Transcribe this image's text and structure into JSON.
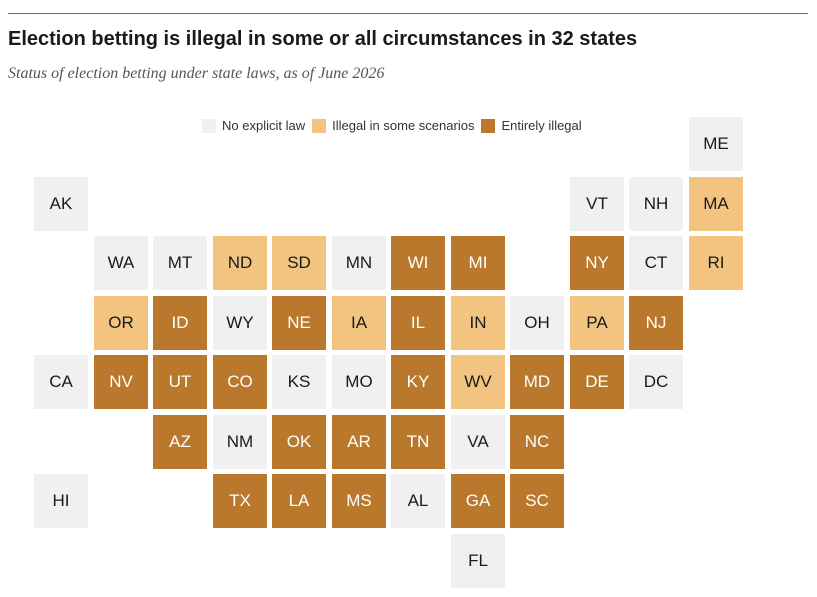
{
  "header": {
    "title": "Election betting is illegal in some or all circumstances in 32 states",
    "subtitle": "Status of election betting under state laws, as of June 2026"
  },
  "legend": [
    {
      "label": "No explicit law",
      "key": "none",
      "color": "#f0f0f0"
    },
    {
      "label": "Illegal in some scenarios",
      "key": "some",
      "color": "#f2c47f"
    },
    {
      "label": "Entirely illegal",
      "key": "all",
      "color": "#b9782c"
    }
  ],
  "chart_data": {
    "type": "heatmap",
    "title": "Election betting is illegal in some or all circumstances in 32 states",
    "subtitle": "Status of election betting under state laws, as of June 2026",
    "categories": {
      "none": "No explicit law",
      "some": "Illegal in some scenarios",
      "all": "Entirely illegal"
    },
    "colors": {
      "none": "#f0f0f0",
      "some": "#f2c47f",
      "all": "#b9782c"
    },
    "states": [
      {
        "state": "ME",
        "row": 0,
        "col": 11,
        "status": "none"
      },
      {
        "state": "AK",
        "row": 1,
        "col": 0,
        "status": "none"
      },
      {
        "state": "VT",
        "row": 1,
        "col": 9,
        "status": "none"
      },
      {
        "state": "NH",
        "row": 1,
        "col": 10,
        "status": "none"
      },
      {
        "state": "MA",
        "row": 1,
        "col": 11,
        "status": "some"
      },
      {
        "state": "WA",
        "row": 2,
        "col": 1,
        "status": "none"
      },
      {
        "state": "MT",
        "row": 2,
        "col": 2,
        "status": "none"
      },
      {
        "state": "ND",
        "row": 2,
        "col": 3,
        "status": "some"
      },
      {
        "state": "SD",
        "row": 2,
        "col": 4,
        "status": "some"
      },
      {
        "state": "MN",
        "row": 2,
        "col": 5,
        "status": "none"
      },
      {
        "state": "WI",
        "row": 2,
        "col": 6,
        "status": "all"
      },
      {
        "state": "MI",
        "row": 2,
        "col": 7,
        "status": "all"
      },
      {
        "state": "NY",
        "row": 2,
        "col": 9,
        "status": "all"
      },
      {
        "state": "CT",
        "row": 2,
        "col": 10,
        "status": "none"
      },
      {
        "state": "RI",
        "row": 2,
        "col": 11,
        "status": "some"
      },
      {
        "state": "OR",
        "row": 3,
        "col": 1,
        "status": "some"
      },
      {
        "state": "ID",
        "row": 3,
        "col": 2,
        "status": "all"
      },
      {
        "state": "WY",
        "row": 3,
        "col": 3,
        "status": "none"
      },
      {
        "state": "NE",
        "row": 3,
        "col": 4,
        "status": "all"
      },
      {
        "state": "IA",
        "row": 3,
        "col": 5,
        "status": "some"
      },
      {
        "state": "IL",
        "row": 3,
        "col": 6,
        "status": "all"
      },
      {
        "state": "IN",
        "row": 3,
        "col": 7,
        "status": "some"
      },
      {
        "state": "OH",
        "row": 3,
        "col": 8,
        "status": "none"
      },
      {
        "state": "PA",
        "row": 3,
        "col": 9,
        "status": "some"
      },
      {
        "state": "NJ",
        "row": 3,
        "col": 10,
        "status": "all"
      },
      {
        "state": "CA",
        "row": 4,
        "col": 0,
        "status": "none"
      },
      {
        "state": "NV",
        "row": 4,
        "col": 1,
        "status": "all"
      },
      {
        "state": "UT",
        "row": 4,
        "col": 2,
        "status": "all"
      },
      {
        "state": "CO",
        "row": 4,
        "col": 3,
        "status": "all"
      },
      {
        "state": "KS",
        "row": 4,
        "col": 4,
        "status": "none"
      },
      {
        "state": "MO",
        "row": 4,
        "col": 5,
        "status": "none"
      },
      {
        "state": "KY",
        "row": 4,
        "col": 6,
        "status": "all"
      },
      {
        "state": "WV",
        "row": 4,
        "col": 7,
        "status": "some"
      },
      {
        "state": "MD",
        "row": 4,
        "col": 8,
        "status": "all"
      },
      {
        "state": "DE",
        "row": 4,
        "col": 9,
        "status": "all"
      },
      {
        "state": "DC",
        "row": 4,
        "col": 10,
        "status": "none"
      },
      {
        "state": "AZ",
        "row": 5,
        "col": 2,
        "status": "all"
      },
      {
        "state": "NM",
        "row": 5,
        "col": 3,
        "status": "none"
      },
      {
        "state": "OK",
        "row": 5,
        "col": 4,
        "status": "all"
      },
      {
        "state": "AR",
        "row": 5,
        "col": 5,
        "status": "all"
      },
      {
        "state": "TN",
        "row": 5,
        "col": 6,
        "status": "all"
      },
      {
        "state": "VA",
        "row": 5,
        "col": 7,
        "status": "none"
      },
      {
        "state": "NC",
        "row": 5,
        "col": 8,
        "status": "all"
      },
      {
        "state": "HI",
        "row": 6,
        "col": 0,
        "status": "none"
      },
      {
        "state": "TX",
        "row": 6,
        "col": 3,
        "status": "all"
      },
      {
        "state": "LA",
        "row": 6,
        "col": 4,
        "status": "all"
      },
      {
        "state": "MS",
        "row": 6,
        "col": 5,
        "status": "all"
      },
      {
        "state": "AL",
        "row": 6,
        "col": 6,
        "status": "none"
      },
      {
        "state": "GA",
        "row": 6,
        "col": 7,
        "status": "all"
      },
      {
        "state": "SC",
        "row": 6,
        "col": 8,
        "status": "all"
      },
      {
        "state": "FL",
        "row": 7,
        "col": 7,
        "status": "none"
      }
    ]
  }
}
